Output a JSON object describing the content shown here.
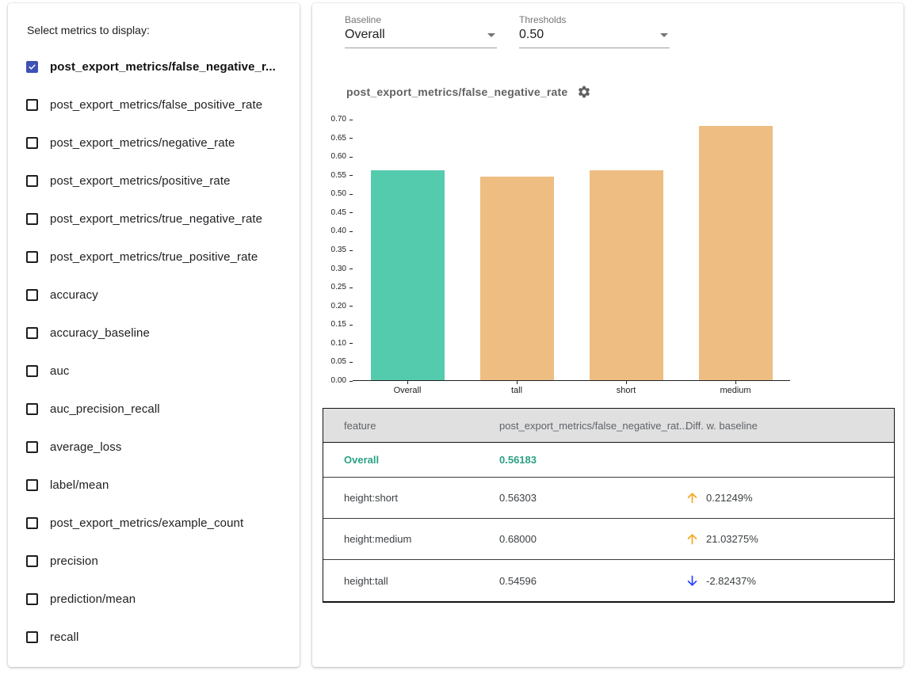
{
  "sidebar": {
    "title": "Select metrics to display:",
    "metrics": [
      {
        "label": "post_export_metrics/false_negative_r...",
        "checked": true
      },
      {
        "label": "post_export_metrics/false_positive_rate",
        "checked": false
      },
      {
        "label": "post_export_metrics/negative_rate",
        "checked": false
      },
      {
        "label": "post_export_metrics/positive_rate",
        "checked": false
      },
      {
        "label": "post_export_metrics/true_negative_rate",
        "checked": false
      },
      {
        "label": "post_export_metrics/true_positive_rate",
        "checked": false
      },
      {
        "label": "accuracy",
        "checked": false
      },
      {
        "label": "accuracy_baseline",
        "checked": false
      },
      {
        "label": "auc",
        "checked": false
      },
      {
        "label": "auc_precision_recall",
        "checked": false
      },
      {
        "label": "average_loss",
        "checked": false
      },
      {
        "label": "label/mean",
        "checked": false
      },
      {
        "label": "post_export_metrics/example_count",
        "checked": false
      },
      {
        "label": "precision",
        "checked": false
      },
      {
        "label": "prediction/mean",
        "checked": false
      },
      {
        "label": "recall",
        "checked": false
      }
    ]
  },
  "controls": {
    "baseline": {
      "label": "Baseline",
      "value": "Overall"
    },
    "thresholds": {
      "label": "Thresholds",
      "value": "0.50"
    }
  },
  "chart_data": {
    "type": "bar",
    "title": "post_export_metrics/false_negative_rate",
    "categories": [
      "Overall",
      "tall",
      "short",
      "medium"
    ],
    "values": [
      0.56183,
      0.54596,
      0.56303,
      0.68
    ],
    "bar_colors": [
      "#55cbad",
      "#eebd82",
      "#eebd82",
      "#eebd82"
    ],
    "ylim": [
      0,
      0.7
    ],
    "ytick_step": 0.05,
    "grid": false,
    "legend": "none",
    "xlabel": "",
    "ylabel": ""
  },
  "table": {
    "headers": [
      "feature",
      "post_export_metrics/false_negative_rat...",
      "Diff. w. baseline"
    ],
    "rows": [
      {
        "feature": "Overall",
        "value": "0.56183",
        "diff": "",
        "direction": "none",
        "is_baseline": true
      },
      {
        "feature": "height:short",
        "value": "0.56303",
        "diff": "0.21249%",
        "direction": "up",
        "is_baseline": false
      },
      {
        "feature": "height:medium",
        "value": "0.68000",
        "diff": "21.03275%",
        "direction": "up",
        "is_baseline": false
      },
      {
        "feature": "height:tall",
        "value": "0.54596",
        "diff": "-2.82437%",
        "direction": "down",
        "is_baseline": false
      }
    ]
  },
  "colors": {
    "checkbox_checked": "#3f51b5",
    "baseline_bar": "#55cbad",
    "comparison_bar": "#eebd82",
    "baseline_text": "#2aa183",
    "up_arrow": "#f5a623",
    "down_arrow": "#2c41ff",
    "table_header_bg": "#e0e0e0"
  }
}
